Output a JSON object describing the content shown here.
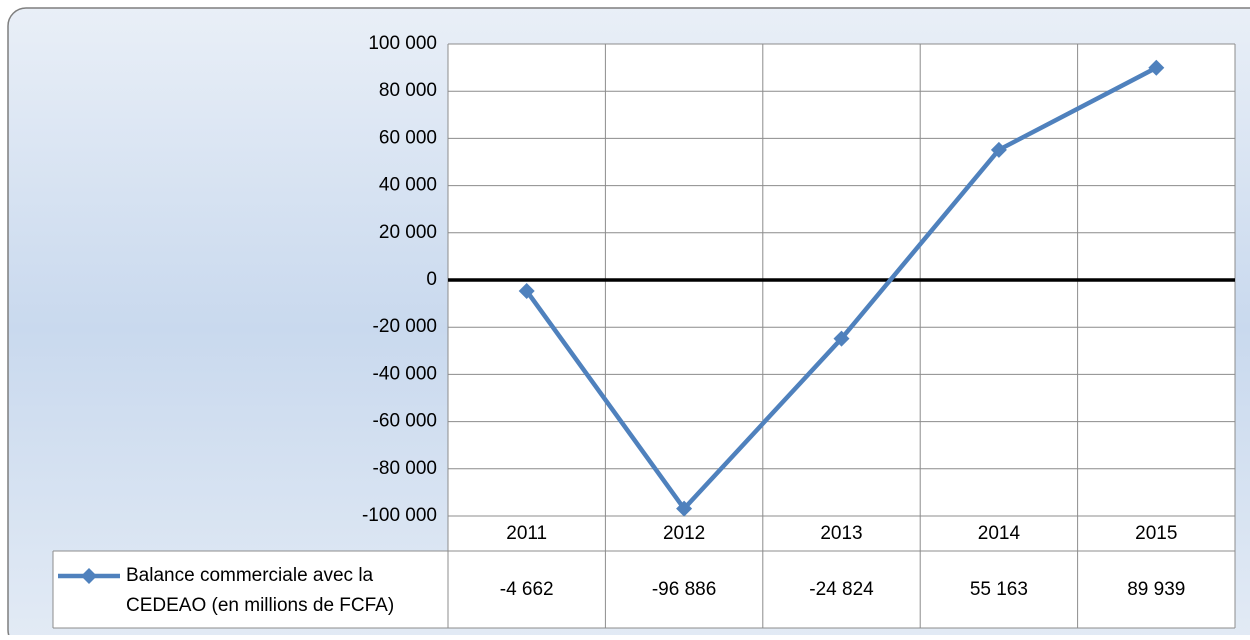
{
  "chart_data": {
    "type": "line",
    "categories": [
      "2011",
      "2012",
      "2013",
      "2014",
      "2015"
    ],
    "series": [
      {
        "name": "Balance commerciale avec la CEDEAO (en millions de FCFA)",
        "color": "#4f81bd",
        "values": [
          -4662,
          -96886,
          -24824,
          55163,
          89939
        ],
        "value_labels": [
          "-4 662",
          "-96 886",
          "-24 824",
          "55 163",
          "89 939"
        ]
      }
    ],
    "ylim": [
      -100000,
      100000
    ],
    "yticks": [
      {
        "value": -100000,
        "label": "-100 000"
      },
      {
        "value": -80000,
        "label": "-80 000"
      },
      {
        "value": -60000,
        "label": "-60 000"
      },
      {
        "value": -40000,
        "label": "-40 000"
      },
      {
        "value": -20000,
        "label": "-20 000"
      },
      0,
      {
        "value": 20000,
        "label": "20 000"
      },
      {
        "value": 40000,
        "label": "40 000"
      },
      {
        "value": 60000,
        "label": "60 000"
      },
      {
        "value": 80000,
        "label": "80 000"
      },
      {
        "value": 100000,
        "label": "100 000"
      }
    ],
    "grid": true,
    "data_table": true
  }
}
